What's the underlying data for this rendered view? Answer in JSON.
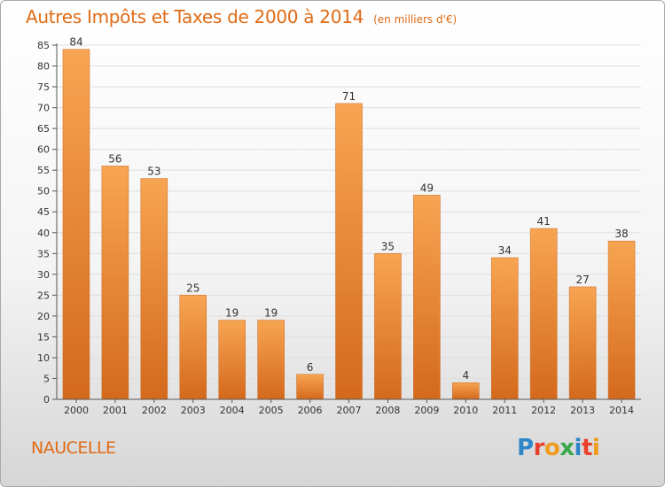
{
  "chart_data": {
    "type": "bar",
    "title": "Autres Impôts et Taxes de 2000 à 2014",
    "subtitle": "(en milliers d'€)",
    "categories": [
      "2000",
      "2001",
      "2002",
      "2003",
      "2004",
      "2005",
      "2006",
      "2007",
      "2008",
      "2009",
      "2010",
      "2011",
      "2012",
      "2013",
      "2014"
    ],
    "values": [
      84,
      56,
      53,
      25,
      19,
      19,
      6,
      71,
      35,
      49,
      4,
      34,
      41,
      27,
      38
    ],
    "data_labels": [
      "84",
      "56",
      "53",
      "25",
      "19",
      "19",
      "6",
      "71",
      "35",
      "49",
      "4",
      "34",
      "41",
      "27",
      "38"
    ],
    "ylim": [
      0,
      85
    ],
    "yticks": [
      0,
      5,
      10,
      15,
      20,
      25,
      30,
      35,
      40,
      45,
      50,
      55,
      60,
      65,
      70,
      75,
      80,
      85
    ],
    "ytick_labels": [
      "0",
      "5",
      "10",
      "15",
      "20",
      "25",
      "30",
      "35",
      "40",
      "45",
      "50",
      "55",
      "60",
      "65",
      "70",
      "75",
      "80",
      "85"
    ],
    "grid": true,
    "xlabel": "",
    "ylabel": "",
    "bar_color": "#f2913d"
  },
  "footer": {
    "commune": "NAUCELLE",
    "logo_text": "Proxiti",
    "logo_colors": [
      "#2f86c9",
      "#e8402a",
      "#f09b1c",
      "#3aa84a",
      "#2f86c9",
      "#e8402a",
      "#f09b1c"
    ]
  }
}
